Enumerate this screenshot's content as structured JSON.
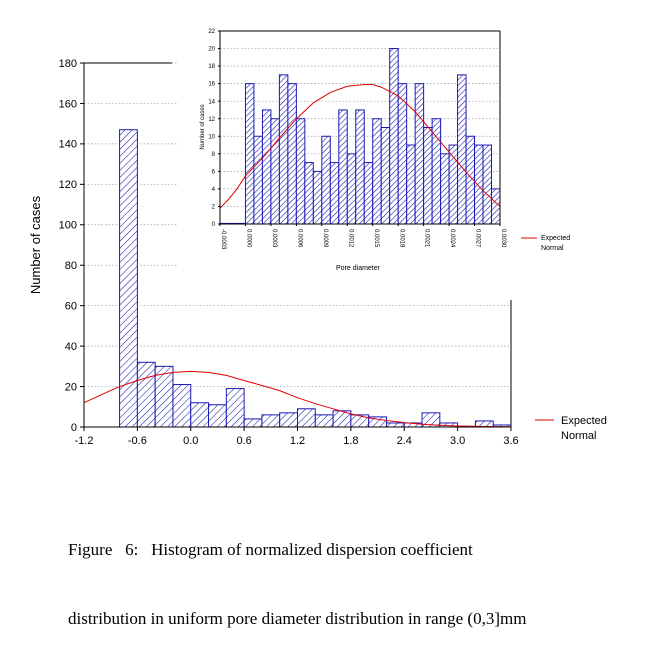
{
  "caption": {
    "line1": "Figure   6:   Histogram of normalized dispersion coefficient",
    "line2": "distribution in uniform pore diameter distribution in range (0,3]mm"
  },
  "colors": {
    "bars": "#1a1ab4",
    "curve": "#e00000",
    "grid": "#9a9a9a",
    "axis": "#000000"
  },
  "chart_data": [
    {
      "type": "bar",
      "title": "",
      "xlabel": "",
      "ylabel": "Number of cases",
      "xlim": [
        -1.2,
        3.6
      ],
      "ylim": [
        0,
        180
      ],
      "xticks": [
        "-1.2",
        "-0.6",
        "0.0",
        "0.6",
        "1.2",
        "1.8",
        "2.4",
        "3.0",
        "3.6"
      ],
      "yticks": [
        "0",
        "20",
        "40",
        "60",
        "80",
        "100",
        "120",
        "140",
        "160",
        "180"
      ],
      "bin_width": 0.2,
      "bins": [
        {
          "x0": -0.8,
          "count": 147
        },
        {
          "x0": -0.6,
          "count": 32
        },
        {
          "x0": -0.4,
          "count": 30
        },
        {
          "x0": -0.2,
          "count": 21
        },
        {
          "x0": 0.0,
          "count": 12
        },
        {
          "x0": 0.2,
          "count": 11
        },
        {
          "x0": 0.4,
          "count": 19
        },
        {
          "x0": 0.6,
          "count": 4
        },
        {
          "x0": 0.8,
          "count": 6
        },
        {
          "x0": 1.0,
          "count": 7
        },
        {
          "x0": 1.2,
          "count": 9
        },
        {
          "x0": 1.4,
          "count": 6
        },
        {
          "x0": 1.6,
          "count": 8
        },
        {
          "x0": 1.8,
          "count": 6
        },
        {
          "x0": 2.0,
          "count": 5
        },
        {
          "x0": 2.2,
          "count": 2
        },
        {
          "x0": 2.4,
          "count": 2
        },
        {
          "x0": 2.6,
          "count": 7
        },
        {
          "x0": 2.8,
          "count": 2
        },
        {
          "x0": 3.0,
          "count": 0
        },
        {
          "x0": 3.2,
          "count": 3
        },
        {
          "x0": 3.4,
          "count": 1
        }
      ],
      "curve": {
        "x": [
          -1.2,
          -1.0,
          -0.8,
          -0.6,
          -0.4,
          -0.2,
          0.0,
          0.2,
          0.4,
          0.6,
          0.8,
          1.0,
          1.2,
          1.4,
          1.6,
          1.8,
          2.0,
          2.2,
          2.4,
          2.6,
          2.8,
          3.0,
          3.2,
          3.4,
          3.6
        ],
        "y": [
          12,
          16,
          20,
          23,
          25.5,
          27,
          27.5,
          27,
          25.5,
          23,
          20.5,
          18,
          14.5,
          11.5,
          9,
          6.5,
          4.5,
          3.2,
          2.2,
          1.4,
          0.9,
          0.5,
          0.3,
          0.2,
          0.1
        ]
      },
      "legend": {
        "line1": "Expected",
        "line2": "Normal",
        "placement": "right"
      }
    },
    {
      "type": "bar",
      "title": "",
      "xlabel": "Pore diameter",
      "ylabel": "Number of cases",
      "xlim": [
        -0.0003,
        0.003
      ],
      "ylim": [
        0,
        22
      ],
      "xticks": [
        "-0.0003",
        "0.0000",
        "0.0003",
        "0.0006",
        "0.0009",
        "0.0012",
        "0.0015",
        "0.0018",
        "0.0021",
        "0.0024",
        "0.0027",
        "0.0030"
      ],
      "yticks": [
        "0",
        "2",
        "4",
        "6",
        "8",
        "10",
        "12",
        "14",
        "16",
        "18",
        "20",
        "22"
      ],
      "bin_width": 0.0001,
      "bins": [
        {
          "x0": -0.0003,
          "count": 0
        },
        {
          "x0": -0.0002,
          "count": 0
        },
        {
          "x0": -0.0001,
          "count": 0
        },
        {
          "x0": 0.0,
          "count": 16
        },
        {
          "x0": 0.0001,
          "count": 10
        },
        {
          "x0": 0.0002,
          "count": 13
        },
        {
          "x0": 0.0003,
          "count": 12
        },
        {
          "x0": 0.0004,
          "count": 17
        },
        {
          "x0": 0.0005,
          "count": 16
        },
        {
          "x0": 0.0006,
          "count": 12
        },
        {
          "x0": 0.0007,
          "count": 7
        },
        {
          "x0": 0.0008,
          "count": 6
        },
        {
          "x0": 0.0009,
          "count": 10
        },
        {
          "x0": 0.001,
          "count": 7
        },
        {
          "x0": 0.0011,
          "count": 13
        },
        {
          "x0": 0.0012,
          "count": 8
        },
        {
          "x0": 0.0013,
          "count": 13
        },
        {
          "x0": 0.0014,
          "count": 7
        },
        {
          "x0": 0.0015,
          "count": 12
        },
        {
          "x0": 0.0016,
          "count": 11
        },
        {
          "x0": 0.0017,
          "count": 20
        },
        {
          "x0": 0.0018,
          "count": 16
        },
        {
          "x0": 0.0019,
          "count": 9
        },
        {
          "x0": 0.002,
          "count": 16
        },
        {
          "x0": 0.0021,
          "count": 11
        },
        {
          "x0": 0.0022,
          "count": 12
        },
        {
          "x0": 0.0023,
          "count": 8
        },
        {
          "x0": 0.0024,
          "count": 9
        },
        {
          "x0": 0.0025,
          "count": 17
        },
        {
          "x0": 0.0026,
          "count": 10
        },
        {
          "x0": 0.0027,
          "count": 9
        },
        {
          "x0": 0.0028,
          "count": 9
        },
        {
          "x0": 0.0029,
          "count": 4
        }
      ],
      "curve": {
        "x": [
          -0.0003,
          -0.0002,
          -0.0001,
          0.0,
          0.0002,
          0.0004,
          0.0006,
          0.0008,
          0.001,
          0.0012,
          0.0014,
          0.0015,
          0.0016,
          0.0018,
          0.002,
          0.0022,
          0.0024,
          0.0026,
          0.0028,
          0.003
        ],
        "y": [
          1.8,
          2.8,
          4.0,
          5.5,
          7.5,
          9.8,
          12.0,
          13.8,
          15.0,
          15.7,
          15.9,
          15.9,
          15.6,
          14.6,
          12.8,
          10.5,
          8.2,
          5.9,
          3.8,
          2.0
        ]
      },
      "legend": {
        "line1": "Expected",
        "line2": "Normal",
        "placement": "right"
      }
    }
  ]
}
